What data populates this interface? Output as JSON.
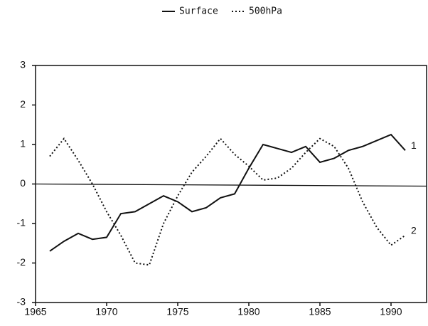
{
  "chart_data": {
    "type": "line",
    "x": [
      1966,
      1967,
      1968,
      1969,
      1970,
      1971,
      1972,
      1973,
      1974,
      1975,
      1976,
      1977,
      1978,
      1979,
      1980,
      1981,
      1982,
      1983,
      1984,
      1985,
      1986,
      1987,
      1988,
      1989,
      1990,
      1991
    ],
    "series": [
      {
        "name": "Surface",
        "color": "#111111",
        "dash": "solid",
        "values": [
          -1.7,
          -1.45,
          -1.25,
          -1.4,
          -1.35,
          -0.75,
          -0.7,
          -0.5,
          -0.3,
          -0.45,
          -0.7,
          -0.6,
          -0.35,
          -0.25,
          0.4,
          1.0,
          0.9,
          0.8,
          0.95,
          0.55,
          0.65,
          0.85,
          0.95,
          1.1,
          1.25,
          0.85
        ]
      },
      {
        "name": "500hPa",
        "color": "#111111",
        "dash": "dotted",
        "values": [
          0.7,
          1.15,
          0.6,
          0.0,
          -0.7,
          -1.3,
          -2.0,
          -2.05,
          -1.0,
          -0.3,
          0.3,
          0.7,
          1.15,
          0.75,
          0.45,
          0.1,
          0.15,
          0.4,
          0.8,
          1.15,
          0.95,
          0.4,
          -0.45,
          -1.1,
          -1.55,
          -1.3
        ]
      }
    ],
    "annotations": [
      "1",
      "2"
    ],
    "xlim": [
      1965,
      1992.5
    ],
    "xticks": [
      1965,
      1970,
      1975,
      1980,
      1985,
      1990
    ],
    "ylim": [
      -3,
      3
    ],
    "yticks": [
      -3,
      -2,
      -1,
      0,
      1,
      2,
      3
    ],
    "zero_line": true,
    "legend": "top"
  }
}
